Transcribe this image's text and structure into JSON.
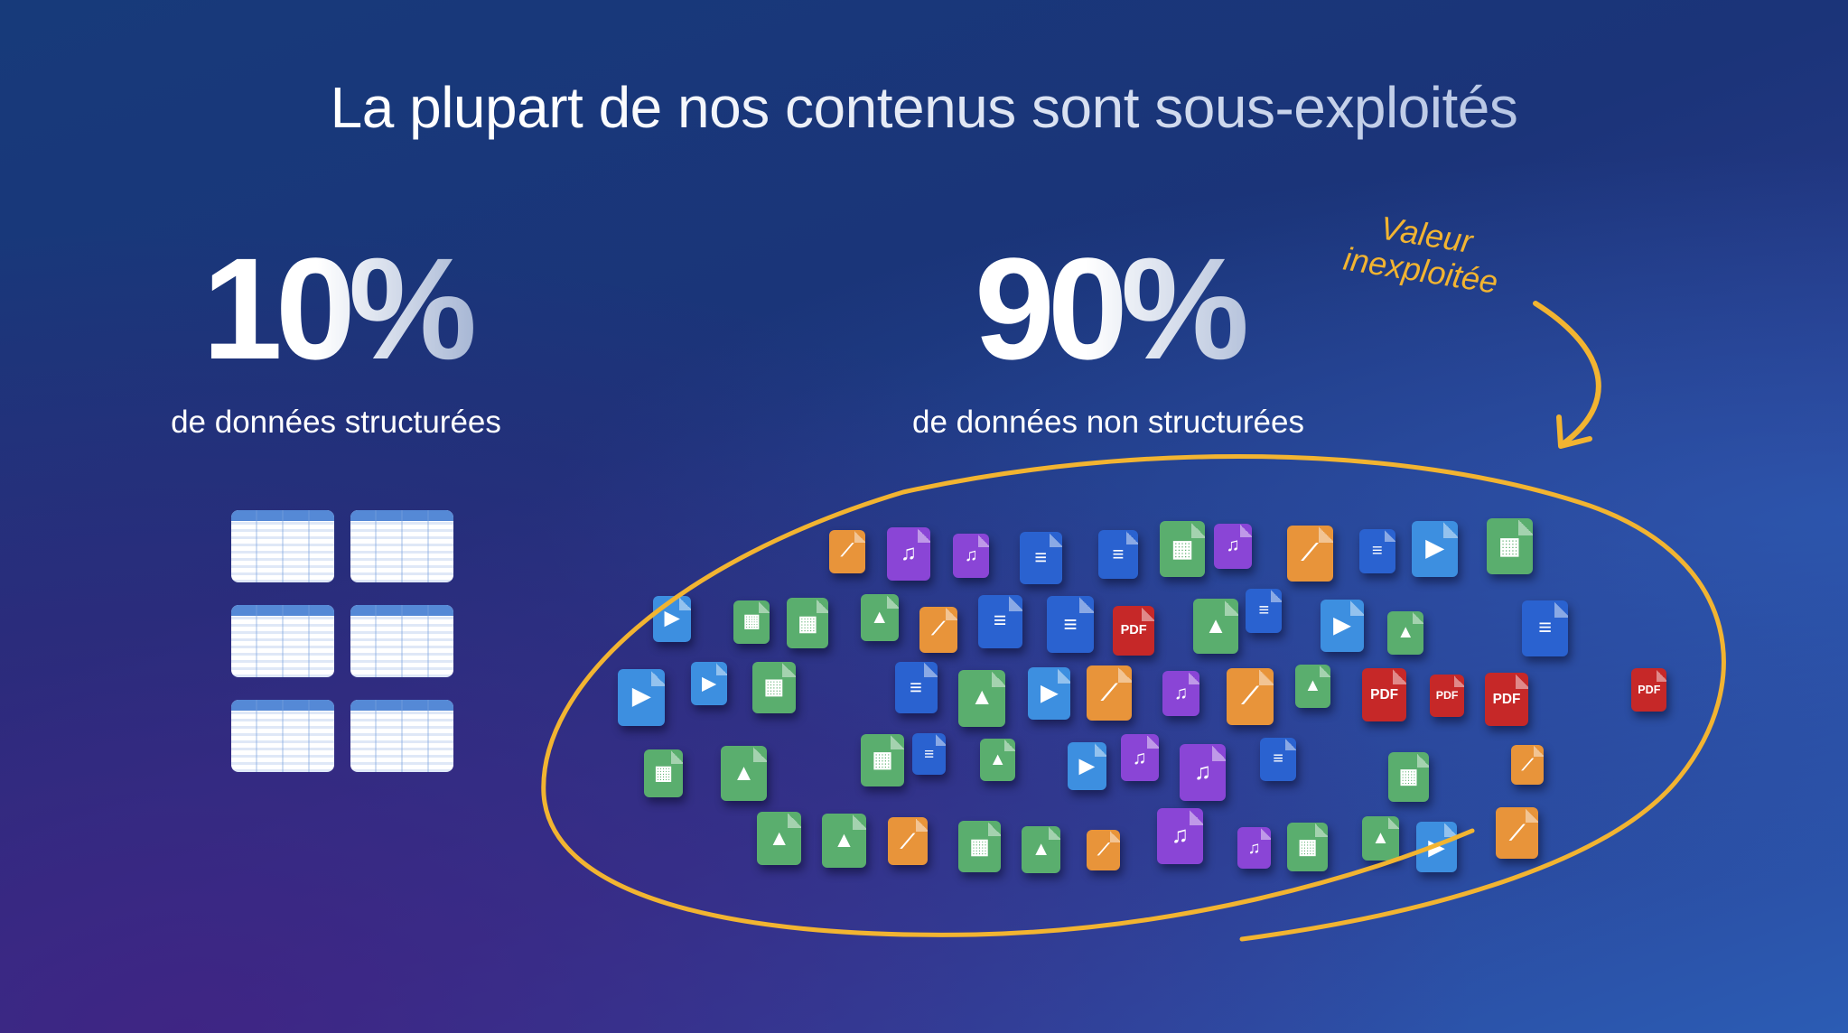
{
  "title": "La plupart de nos contenus sont sous-exploités",
  "structured": {
    "value": "10%",
    "label": "de données structurées"
  },
  "unstructured": {
    "value": "90%",
    "label": "de données non structurées"
  },
  "annotation": {
    "line1": "Valeur",
    "line2": "inexploitée"
  },
  "pdf_label": "PDF",
  "colors": {
    "accent": "#f2b431",
    "doc": "#2a62d0",
    "video": "#3d8fe0",
    "chart": "#e8943a",
    "pdf": "#c62828",
    "sheet": "#5aae6e",
    "audio": "#8a45d6",
    "image": "#5aae6e"
  },
  "file_types": [
    "doc-icon",
    "video-icon",
    "chart-icon",
    "pdf-icon",
    "sheet-icon",
    "audio-icon",
    "image-icon"
  ]
}
